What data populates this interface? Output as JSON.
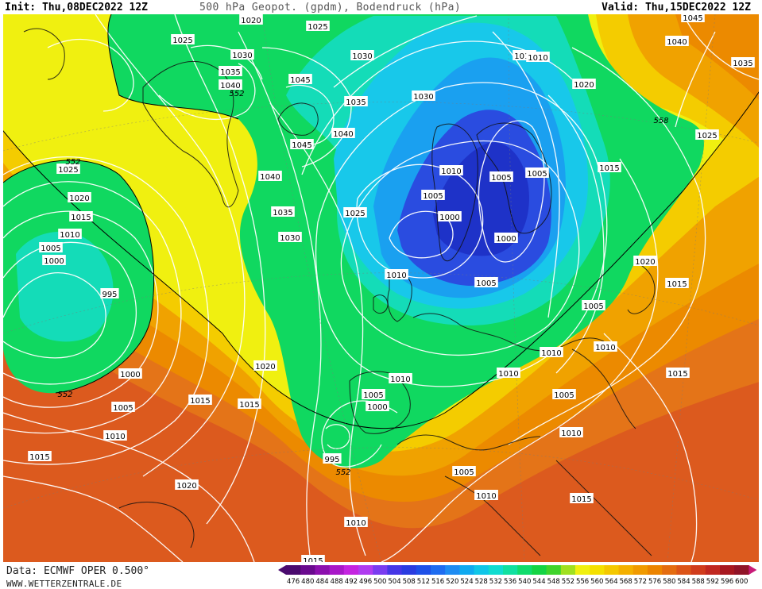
{
  "header": {
    "init": "Init: Thu,08DEC2022 12Z",
    "title": "500 hPa Geopot. (gpdm), Bodendruck (hPa)",
    "valid": "Valid: Thu,15DEC2022 12Z"
  },
  "footer": {
    "source": "Data: ECMWF OPER 0.500°",
    "website": "WWW.WETTERZENTRALE.DE"
  },
  "color_scale": {
    "values": [
      "476",
      "480",
      "484",
      "488",
      "492",
      "496",
      "500",
      "504",
      "508",
      "512",
      "516",
      "520",
      "524",
      "528",
      "532",
      "536",
      "540",
      "544",
      "548",
      "552",
      "556",
      "560",
      "564",
      "568",
      "572",
      "576",
      "580",
      "584",
      "588",
      "592",
      "596",
      "600"
    ],
    "colors": [
      "#4a0a6e",
      "#6a0a8e",
      "#8c10ae",
      "#a818c8",
      "#c424e0",
      "#b03cf0",
      "#7a3cf0",
      "#4636e6",
      "#2a3ce0",
      "#1e50e8",
      "#1e6cf0",
      "#1e8cf2",
      "#10aaf0",
      "#10c6e8",
      "#10dcd0",
      "#10e0a0",
      "#10dc6c",
      "#14d444",
      "#40d42c",
      "#a0e020",
      "#f0f010",
      "#f4e000",
      "#f4c800",
      "#f4b000",
      "#f09a00",
      "#ec8400",
      "#e46c10",
      "#dc5418",
      "#d03c1c",
      "#c02820",
      "#a81820",
      "#901428"
    ]
  },
  "field_colors": {
    "g540": "#1aa0f0",
    "g544": "#18c8ea",
    "g548": "#14dcb8",
    "g552": "#10d860",
    "g556": "#f0f010",
    "g560": "#f4cc00",
    "g564": "#f0a200",
    "g568": "#ec8a00",
    "g572": "#e47418",
    "g576": "#dc5a1e",
    "low_core": "#2a4ce0",
    "low_core_deep": "#1e32c8"
  },
  "pressure_labels": [
    {
      "text": "1020"
    },
    {
      "text": "1025"
    },
    {
      "text": "1025"
    },
    {
      "text": "1030"
    },
    {
      "text": "1030"
    },
    {
      "text": "1035"
    },
    {
      "text": "1040"
    },
    {
      "text": "1045"
    },
    {
      "text": "1015"
    },
    {
      "text": "1010"
    },
    {
      "text": "1040"
    },
    {
      "text": "1035"
    },
    {
      "text": "1045"
    },
    {
      "text": "1045"
    },
    {
      "text": "1040"
    },
    {
      "text": "1030"
    },
    {
      "text": "1035"
    },
    {
      "text": "1020"
    },
    {
      "text": "1025"
    },
    {
      "text": "1040"
    },
    {
      "text": "1025"
    },
    {
      "text": "1020"
    },
    {
      "text": "1015"
    },
    {
      "text": "1010"
    },
    {
      "text": "1005"
    },
    {
      "text": "1000"
    },
    {
      "text": "995"
    },
    {
      "text": "1035"
    },
    {
      "text": "1030"
    },
    {
      "text": "1025"
    },
    {
      "text": "1010"
    },
    {
      "text": "1005"
    },
    {
      "text": "1000"
    },
    {
      "text": "1010"
    },
    {
      "text": "1005"
    },
    {
      "text": "1005"
    },
    {
      "text": "1000"
    },
    {
      "text": "1005"
    },
    {
      "text": "1015"
    },
    {
      "text": "1020"
    },
    {
      "text": "1015"
    },
    {
      "text": "1005"
    },
    {
      "text": "1010"
    },
    {
      "text": "1010"
    },
    {
      "text": "1015"
    },
    {
      "text": "1000"
    },
    {
      "text": "1005"
    },
    {
      "text": "1010"
    },
    {
      "text": "1015"
    },
    {
      "text": "1020"
    },
    {
      "text": "1015"
    },
    {
      "text": "1015"
    },
    {
      "text": "1010"
    },
    {
      "text": "1005"
    },
    {
      "text": "1000"
    },
    {
      "text": "995"
    },
    {
      "text": "1005"
    },
    {
      "text": "1005"
    },
    {
      "text": "1010"
    },
    {
      "text": "1010"
    },
    {
      "text": "1010"
    },
    {
      "text": "1005"
    },
    {
      "text": "1010"
    },
    {
      "text": "1015"
    },
    {
      "text": "1010"
    },
    {
      "text": "1020"
    },
    {
      "text": "1015"
    }
  ],
  "geopotential_labels": [
    {
      "text": "552"
    },
    {
      "text": "552"
    },
    {
      "text": "552"
    },
    {
      "text": "558"
    },
    {
      "text": "552"
    }
  ]
}
